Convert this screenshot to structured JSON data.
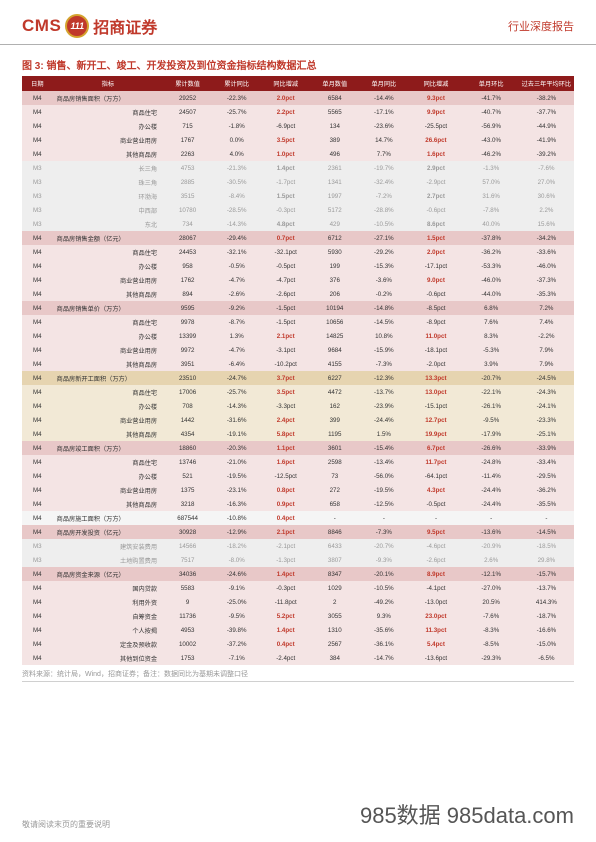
{
  "header": {
    "cms": "CMS",
    "circle": "111",
    "cn": "招商证券",
    "right": "行业深度报告"
  },
  "figure_title": "图 3: 销售、新开工、竣工、开发投资及到位资金指标结构数据汇总",
  "columns": [
    "日期",
    "指标",
    "累计数值",
    "累计同比",
    "同比增减",
    "单月数值",
    "单月同比",
    "同比增减",
    "单月环比",
    "过去三年平均环比"
  ],
  "col_widths": [
    "5%",
    "18%",
    "8%",
    "8%",
    "8%",
    "8%",
    "8%",
    "9%",
    "9%",
    "9%"
  ],
  "section_colors": {
    "pink_header": "#e8c8c8",
    "pink_sub": "#f4e4e4",
    "pink_gray": "#eeeeee",
    "tan_header": "#e6d4b0",
    "tan_sub": "#f2e9d6",
    "plain": "#ffffff",
    "gray_alt": "#f5f5f5"
  },
  "rows": [
    {
      "bg": "pink_header",
      "c": [
        "M4",
        "商品房销售面积（万方）",
        "29252",
        "-22.3%",
        "2.0pct",
        "6584",
        "-14.4%",
        "9.3pct",
        "-41.7%",
        "-38.2%"
      ],
      "red": [
        4,
        7
      ],
      "label": true
    },
    {
      "bg": "pink_sub",
      "c": [
        "M4",
        "商品住宅",
        "24507",
        "-25.7%",
        "2.2pct",
        "5565",
        "-17.1%",
        "9.9pct",
        "-40.7%",
        "-37.7%"
      ],
      "red": [
        4,
        7
      ]
    },
    {
      "bg": "pink_sub",
      "c": [
        "M4",
        "办公楼",
        "715",
        "-1.8%",
        "-6.9pct",
        "134",
        "-23.6%",
        "-25.5pct",
        "-56.9%",
        "-44.9%"
      ],
      "red": []
    },
    {
      "bg": "pink_sub",
      "c": [
        "M4",
        "商业营业用房",
        "1767",
        "0.0%",
        "3.5pct",
        "389",
        "14.7%",
        "26.6pct",
        "-43.0%",
        "-41.9%"
      ],
      "red": [
        4,
        7
      ]
    },
    {
      "bg": "pink_sub",
      "c": [
        "M4",
        "其他商品房",
        "2263",
        "4.0%",
        "1.0pct",
        "496",
        "7.7%",
        "1.6pct",
        "-46.2%",
        "-39.2%"
      ],
      "red": [
        4,
        7
      ]
    },
    {
      "bg": "pink_gray",
      "c": [
        "M3",
        "长三角",
        "4753",
        "-21.3%",
        "1.4pct",
        "2361",
        "-19.7%",
        "2.9pct",
        "-1.3%",
        "-7.6%"
      ],
      "gray": true,
      "red": [
        4,
        7
      ]
    },
    {
      "bg": "pink_gray",
      "c": [
        "M3",
        "珠三角",
        "2885",
        "-30.5%",
        "-1.7pct",
        "1341",
        "-32.4%",
        "-2.9pct",
        "57.0%",
        "27.0%"
      ],
      "gray": true
    },
    {
      "bg": "pink_gray",
      "c": [
        "M3",
        "环渤海",
        "3515",
        "-8.4%",
        "1.5pct",
        "1997",
        "-7.2%",
        "2.7pct",
        "31.6%",
        "30.6%"
      ],
      "gray": true,
      "red": [
        4,
        7
      ]
    },
    {
      "bg": "pink_gray",
      "c": [
        "M3",
        "中西部",
        "10780",
        "-28.5%",
        "-0.3pct",
        "5172",
        "-28.8%",
        "-0.6pct",
        "-7.8%",
        "2.2%"
      ],
      "gray": true
    },
    {
      "bg": "pink_gray",
      "c": [
        "M3",
        "东北",
        "734",
        "-14.3%",
        "4.8pct",
        "429",
        "-10.5%",
        "8.6pct",
        "40.0%",
        "15.6%"
      ],
      "gray": true,
      "red": [
        4,
        7
      ]
    },
    {
      "bg": "pink_header",
      "c": [
        "M4",
        "商品房销售金额（亿元）",
        "28067",
        "-29.4%",
        "0.7pct",
        "6712",
        "-27.1%",
        "1.5pct",
        "-37.8%",
        "-34.2%"
      ],
      "red": [
        4,
        7
      ],
      "label": true
    },
    {
      "bg": "pink_sub",
      "c": [
        "M4",
        "商品住宅",
        "24453",
        "-32.1%",
        "-32.1pct",
        "5930",
        "-29.2%",
        "2.0pct",
        "-36.2%",
        "-33.6%"
      ],
      "red": [
        7
      ]
    },
    {
      "bg": "pink_sub",
      "c": [
        "M4",
        "办公楼",
        "958",
        "-0.5%",
        "-0.5pct",
        "199",
        "-15.3%",
        "-17.1pct",
        "-53.3%",
        "-46.0%"
      ],
      "red": []
    },
    {
      "bg": "pink_sub",
      "c": [
        "M4",
        "商业营业用房",
        "1762",
        "-4.7%",
        "-4.7pct",
        "376",
        "-3.6%",
        "9.0pct",
        "-46.0%",
        "-37.3%"
      ],
      "red": [
        7
      ]
    },
    {
      "bg": "pink_sub",
      "c": [
        "M4",
        "其他商品房",
        "894",
        "-2.6%",
        "-2.6pct",
        "206",
        "-0.2%",
        "-0.6pct",
        "-44.0%",
        "-35.3%"
      ],
      "red": []
    },
    {
      "bg": "pink_header",
      "c": [
        "M4",
        "商品房销售单价（万方）",
        "9595",
        "-9.2%",
        "-1.5pct",
        "10194",
        "-14.8%",
        "-8.5pct",
        "6.8%",
        "7.2%"
      ],
      "red": [],
      "label": true
    },
    {
      "bg": "pink_sub",
      "c": [
        "M4",
        "商品住宅",
        "9978",
        "-8.7%",
        "-1.5pct",
        "10656",
        "-14.5%",
        "-8.9pct",
        "7.6%",
        "7.4%"
      ],
      "red": []
    },
    {
      "bg": "pink_sub",
      "c": [
        "M4",
        "办公楼",
        "13399",
        "1.3%",
        "2.1pct",
        "14825",
        "10.8%",
        "11.0pct",
        "8.3%",
        "-2.2%"
      ],
      "red": [
        4,
        7
      ]
    },
    {
      "bg": "pink_sub",
      "c": [
        "M4",
        "商业营业用房",
        "9972",
        "-4.7%",
        "-3.1pct",
        "9684",
        "-15.9%",
        "-18.1pct",
        "-5.3%",
        "7.9%"
      ],
      "red": []
    },
    {
      "bg": "pink_sub",
      "c": [
        "M4",
        "其他商品房",
        "3951",
        "-6.4%",
        "-10.2pct",
        "4155",
        "-7.3%",
        "-2.0pct",
        "3.9%",
        "7.9%"
      ],
      "red": []
    },
    {
      "bg": "tan_header",
      "c": [
        "M4",
        "商品房新开工面积（万方）",
        "23510",
        "-24.7%",
        "3.7pct",
        "6227",
        "-12.3%",
        "13.3pct",
        "-20.7%",
        "-24.5%"
      ],
      "red": [
        4,
        7
      ],
      "label": true
    },
    {
      "bg": "tan_sub",
      "c": [
        "M4",
        "商品住宅",
        "17006",
        "-25.7%",
        "3.5pct",
        "4472",
        "-13.7%",
        "13.0pct",
        "-22.1%",
        "-24.3%"
      ],
      "red": [
        4,
        7
      ]
    },
    {
      "bg": "tan_sub",
      "c": [
        "M4",
        "办公楼",
        "708",
        "-14.3%",
        "-3.3pct",
        "162",
        "-23.9%",
        "-15.1pct",
        "-26.1%",
        "-24.1%"
      ],
      "red": []
    },
    {
      "bg": "tan_sub",
      "c": [
        "M4",
        "商业营业用房",
        "1442",
        "-31.6%",
        "2.4pct",
        "399",
        "-24.4%",
        "12.7pct",
        "-9.5%",
        "-23.3%"
      ],
      "red": [
        4,
        7
      ]
    },
    {
      "bg": "tan_sub",
      "c": [
        "M4",
        "其他商品房",
        "4354",
        "-19.1%",
        "5.8pct",
        "1195",
        "1.5%",
        "19.9pct",
        "-17.9%",
        "-25.1%"
      ],
      "red": [
        4,
        7
      ]
    },
    {
      "bg": "pink_header",
      "c": [
        "M4",
        "商品房竣工面积（万方）",
        "18860",
        "-20.3%",
        "1.1pct",
        "3601",
        "-15.4%",
        "6.7pct",
        "-26.6%",
        "-33.9%"
      ],
      "red": [
        4,
        7
      ],
      "label": true
    },
    {
      "bg": "pink_sub",
      "c": [
        "M4",
        "商品住宅",
        "13746",
        "-21.0%",
        "1.6pct",
        "2598",
        "-13.4%",
        "11.7pct",
        "-24.8%",
        "-33.4%"
      ],
      "red": [
        4,
        7
      ]
    },
    {
      "bg": "pink_sub",
      "c": [
        "M4",
        "办公楼",
        "521",
        "-19.5%",
        "-12.5pct",
        "73",
        "-56.0%",
        "-64.1pct",
        "-11.4%",
        "-29.5%"
      ],
      "red": []
    },
    {
      "bg": "pink_sub",
      "c": [
        "M4",
        "商业营业用房",
        "1375",
        "-23.1%",
        "0.8pct",
        "272",
        "-19.5%",
        "4.3pct",
        "-24.4%",
        "-36.2%"
      ],
      "red": [
        4,
        7
      ]
    },
    {
      "bg": "pink_sub",
      "c": [
        "M4",
        "其他商品房",
        "3218",
        "-16.3%",
        "0.9pct",
        "658",
        "-12.5%",
        "-0.5pct",
        "-24.4%",
        "-35.5%"
      ],
      "red": [
        4
      ]
    },
    {
      "bg": "gray_alt",
      "c": [
        "M4",
        "商品房施工面积（万方）",
        "687544",
        "-10.8%",
        "0.4pct",
        "-",
        "-",
        "-",
        "-",
        "-"
      ],
      "red": [
        4
      ],
      "label": true
    },
    {
      "bg": "pink_header",
      "c": [
        "M4",
        "商品房开发投资（亿元）",
        "30928",
        "-12.9%",
        "2.1pct",
        "8846",
        "-7.3%",
        "9.5pct",
        "-13.6%",
        "-14.5%"
      ],
      "red": [
        4,
        7
      ],
      "label": true
    },
    {
      "bg": "pink_gray",
      "c": [
        "M3",
        "建筑安装费用",
        "14566",
        "-18.2%",
        "-2.1pct",
        "6433",
        "-20.7%",
        "-4.6pct",
        "-20.9%",
        "-18.5%"
      ],
      "gray": true
    },
    {
      "bg": "pink_gray",
      "c": [
        "M3",
        "土地购置费用",
        "7517",
        "-8.0%",
        "-1.3pct",
        "3807",
        "-9.3%",
        "-2.6pct",
        "2.6%",
        "29.8%"
      ],
      "gray": true
    },
    {
      "bg": "pink_header",
      "c": [
        "M4",
        "商品房资金来源（亿元）",
        "34036",
        "-24.6%",
        "1.4pct",
        "8347",
        "-20.1%",
        "8.9pct",
        "-12.1%",
        "-15.7%"
      ],
      "red": [
        4,
        7
      ],
      "label": true
    },
    {
      "bg": "pink_sub",
      "c": [
        "M4",
        "国内贷款",
        "5583",
        "-9.1%",
        "-0.3pct",
        "1029",
        "-10.5%",
        "-4.1pct",
        "-27.0%",
        "-13.7%"
      ],
      "red": []
    },
    {
      "bg": "pink_sub",
      "c": [
        "M4",
        "利用外资",
        "9",
        "-25.0%",
        "-11.8pct",
        "2",
        "-49.2%",
        "-13.0pct",
        "20.5%",
        "414.3%"
      ],
      "red": []
    },
    {
      "bg": "pink_sub",
      "c": [
        "M4",
        "自筹资金",
        "11736",
        "-9.5%",
        "5.2pct",
        "3055",
        "9.3%",
        "23.0pct",
        "-7.6%",
        "-18.7%"
      ],
      "red": [
        4,
        7
      ]
    },
    {
      "bg": "pink_sub",
      "c": [
        "M4",
        "个人按揭",
        "4953",
        "-39.8%",
        "1.4pct",
        "1310",
        "-35.6%",
        "11.3pct",
        "-8.3%",
        "-16.6%"
      ],
      "red": [
        4,
        7
      ]
    },
    {
      "bg": "pink_sub",
      "c": [
        "M4",
        "定金及预收款",
        "10002",
        "-37.2%",
        "0.4pct",
        "2567",
        "-36.1%",
        "5.4pct",
        "-8.5%",
        "-15.0%"
      ],
      "red": [
        4,
        7
      ]
    },
    {
      "bg": "pink_sub",
      "c": [
        "M4",
        "其他到位资金",
        "1753",
        "-7.1%",
        "-2.4pct",
        "384",
        "-14.7%",
        "-13.6pct",
        "-29.3%",
        "-6.5%"
      ],
      "red": []
    }
  ],
  "source": "资料来源：统计局，Wind，招商证券；备注：数据同比为基期未调整口径",
  "footer": {
    "left": "敬请阅读末页的重要说明",
    "right": "985数据 985data.com"
  }
}
